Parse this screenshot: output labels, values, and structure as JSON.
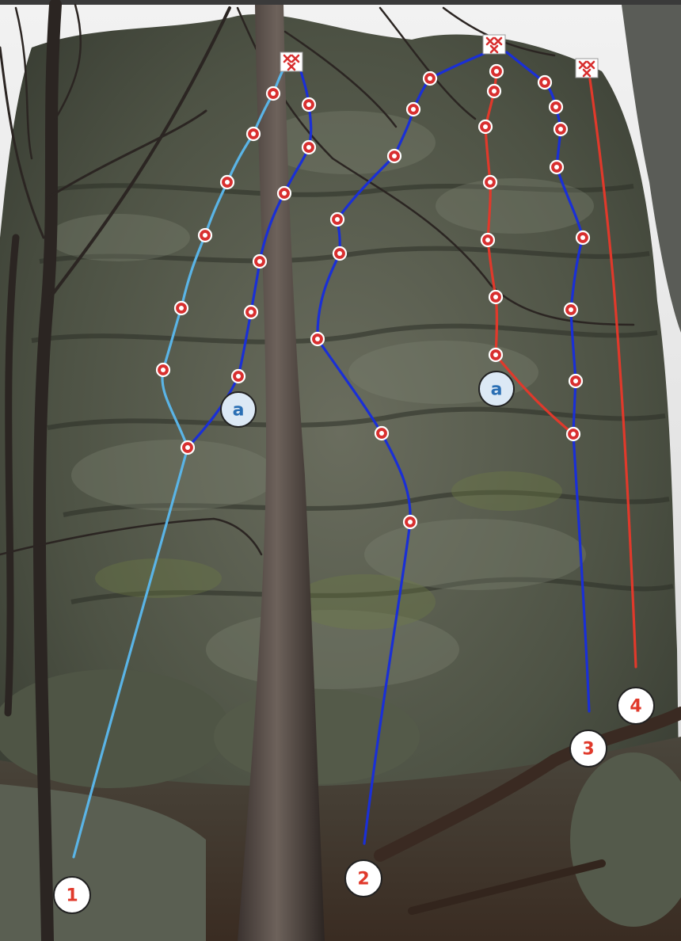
{
  "routes": [
    {
      "label": "1",
      "color": "#5ab4e6"
    },
    {
      "label": "a",
      "color": "#1a2fd6"
    },
    {
      "label": "2",
      "color": "#1a2fd6"
    },
    {
      "label": "a",
      "color": "#e0392b"
    },
    {
      "label": "3",
      "color": "#1a2fd6"
    },
    {
      "label": "4",
      "color": "#e0392b"
    }
  ],
  "colors": {
    "bolt": "#d82f2f",
    "anchor_mark": "#d82f2f"
  },
  "icons": [
    "bolt-marker-icon",
    "anchor-icon",
    "tree-trunk",
    "rock-wall"
  ]
}
